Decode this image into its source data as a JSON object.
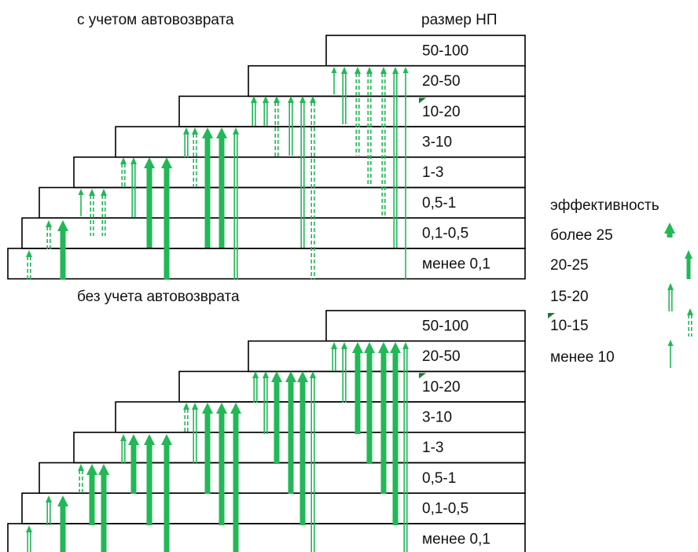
{
  "top_panel": {
    "title": "с учетом автовозврата",
    "size_header": "размер НП"
  },
  "bottom_panel": {
    "title": "без учета автовозврата"
  },
  "size_classes": [
    "50-100",
    "20-50",
    "10-20",
    "3-10",
    "1-3",
    "0,5-1",
    "0,1-0,5",
    "менее 0,1"
  ],
  "legend": {
    "title": "эффективность",
    "items": [
      "более 25",
      "20-25",
      "15-20",
      "10-15",
      "менее 10"
    ]
  }
}
